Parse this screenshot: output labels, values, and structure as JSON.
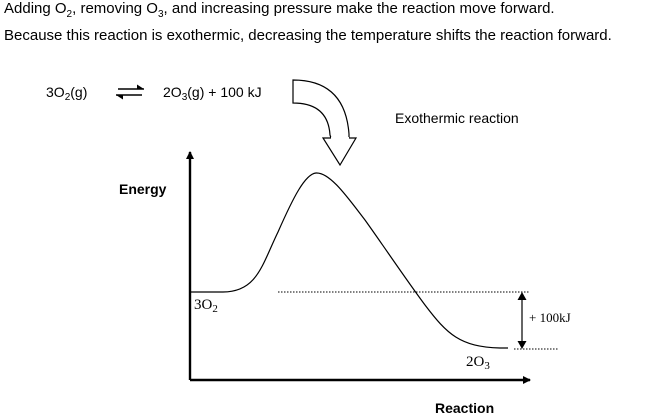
{
  "statements": {
    "line1": {
      "pre": "Adding O",
      "sub1": "2",
      "mid": ", removing O",
      "sub2": "3",
      "post": ", and increasing pressure make the reaction move forward."
    },
    "line2": "Because this reaction is exothermic, decreasing the temperature shifts the reaction forward."
  },
  "equation": {
    "reactant_coef": "3O",
    "reactant_sub": "2",
    "reactant_state": "(g)",
    "product_coef": "2O",
    "product_sub": "3",
    "product_state": "(g) + 100 kJ"
  },
  "diagram": {
    "title": "Exothermic reaction",
    "y_axis_label": "Energy",
    "x_axis_label": "Reaction",
    "reactant_label": {
      "base": "3O",
      "sub": "2"
    },
    "product_label": {
      "base": "2O",
      "sub": "3"
    },
    "delta_label": "+ 100kJ"
  }
}
